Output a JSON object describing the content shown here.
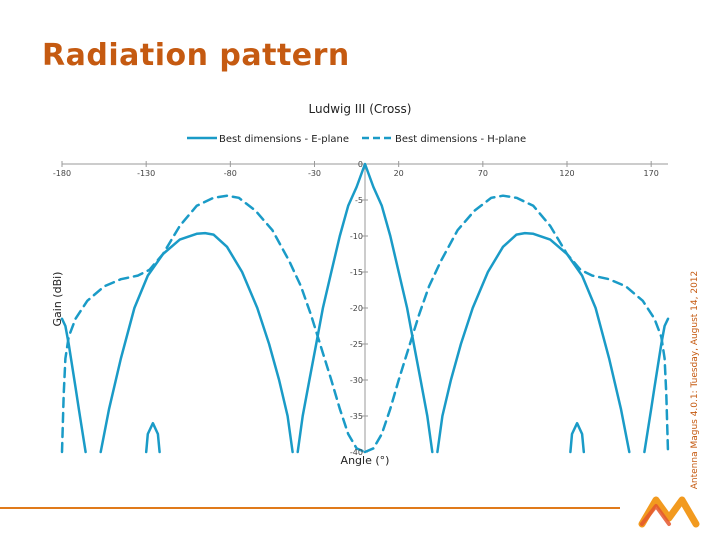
{
  "slide": {
    "title": "Radiation pattern"
  },
  "side_note": "Antenna Magus 4.0.1: Tuesday, August 14, 2012",
  "colors": {
    "series": "#1a9bc7",
    "title": "#c55a11",
    "accent": "#e07a1a",
    "axis": "#9a9a9a"
  },
  "logo": {
    "icon": "antenna-magus-logo-icon"
  },
  "chart_data": {
    "type": "line",
    "title": "Ludwig III (Cross)",
    "xlabel": "Angle (°)",
    "ylabel": "Gain (dBi)",
    "xlim": [
      -180,
      180
    ],
    "ylim": [
      -40,
      0
    ],
    "x_ticks": [
      -180,
      -130,
      -80,
      -30,
      20,
      70,
      120,
      170
    ],
    "x_tick_labels": [
      "-180",
      "-130",
      "-80",
      "-30",
      "20",
      "70",
      "120",
      "170"
    ],
    "y_ticks": [
      0,
      -5,
      -10,
      -15,
      -20,
      -25,
      -30,
      -35,
      -40
    ],
    "y_tick_labels": [
      "0",
      "-5",
      "-10",
      "-15",
      "-20",
      "-25",
      "-30",
      "-35",
      "-40"
    ],
    "legend_position": "top-center",
    "grid": false,
    "series": [
      {
        "name": "Best dimensions - E-plane",
        "style": "solid",
        "segments": [
          [
            [
              -40,
              -40
            ],
            [
              -37,
              -35
            ],
            [
              -33,
              -30
            ],
            [
              -29,
              -25
            ],
            [
              -25,
              -20
            ],
            [
              -20,
              -15
            ],
            [
              -15,
              -10
            ],
            [
              -10,
              -5.8
            ],
            [
              -5,
              -3.2
            ],
            [
              0,
              0
            ],
            [
              5,
              -3.2
            ],
            [
              10,
              -5.8
            ],
            [
              15,
              -10
            ],
            [
              20,
              -15
            ],
            [
              25,
              -20
            ],
            [
              29,
              -25
            ],
            [
              33,
              -30
            ],
            [
              37,
              -35
            ],
            [
              40,
              -40
            ]
          ],
          [
            [
              -157,
              -40
            ],
            [
              -152,
              -34
            ],
            [
              -145,
              -27
            ],
            [
              -137,
              -20
            ],
            [
              -129,
              -15.5
            ],
            [
              -120,
              -12.5
            ],
            [
              -110,
              -10.5
            ],
            [
              -100,
              -9.7
            ],
            [
              -95,
              -9.6
            ],
            [
              -90,
              -9.8
            ],
            [
              -82,
              -11.5
            ],
            [
              -73,
              -15
            ],
            [
              -64,
              -20
            ],
            [
              -57,
              -25
            ],
            [
              -51,
              -30
            ],
            [
              -46,
              -35
            ],
            [
              -43,
              -40
            ]
          ],
          [
            [
              43,
              -40
            ],
            [
              46,
              -35
            ],
            [
              51,
              -30
            ],
            [
              57,
              -25
            ],
            [
              64,
              -20
            ],
            [
              73,
              -15
            ],
            [
              82,
              -11.5
            ],
            [
              90,
              -9.8
            ],
            [
              95,
              -9.6
            ],
            [
              100,
              -9.7
            ],
            [
              110,
              -10.5
            ],
            [
              120,
              -12.5
            ],
            [
              129,
              -15.5
            ],
            [
              137,
              -20
            ],
            [
              145,
              -27
            ],
            [
              152,
              -34
            ],
            [
              157,
              -40
            ]
          ],
          [
            [
              -180,
              -21.5
            ],
            [
              -178,
              -22.5
            ],
            [
              -176,
              -25
            ],
            [
              -174,
              -28
            ],
            [
              -172,
              -31
            ],
            [
              -170,
              -34
            ],
            [
              -168,
              -37
            ],
            [
              -166,
              -40
            ]
          ],
          [
            [
              166,
              -40
            ],
            [
              168,
              -37
            ],
            [
              170,
              -34
            ],
            [
              172,
              -31
            ],
            [
              174,
              -28
            ],
            [
              176,
              -25
            ],
            [
              178,
              -22.5
            ],
            [
              180,
              -21.5
            ]
          ],
          [
            [
              -130,
              -40
            ],
            [
              -129,
              -37.5
            ],
            [
              -126,
              -36
            ],
            [
              -123,
              -37.5
            ],
            [
              -122,
              -40
            ]
          ],
          [
            [
              122,
              -40
            ],
            [
              123,
              -37.5
            ],
            [
              126,
              -36
            ],
            [
              129,
              -37.5
            ],
            [
              130,
              -40
            ]
          ]
        ]
      },
      {
        "name": "Best dimensions - H-plane",
        "style": "dashed",
        "segments": [
          [
            [
              -180,
              -40
            ],
            [
              -179,
              -32
            ],
            [
              -178,
              -27
            ],
            [
              -176,
              -24
            ],
            [
              -172,
              -21.5
            ],
            [
              -165,
              -19
            ],
            [
              -155,
              -17
            ],
            [
              -145,
              -16
            ],
            [
              -135,
              -15.5
            ],
            [
              -128,
              -14.7
            ],
            [
              -120,
              -12.5
            ],
            [
              -110,
              -8.6
            ],
            [
              -100,
              -5.8
            ],
            [
              -90,
              -4.7
            ],
            [
              -82,
              -4.4
            ],
            [
              -75,
              -4.7
            ],
            [
              -65,
              -6.5
            ],
            [
              -55,
              -9.2
            ],
            [
              -45,
              -13.5
            ],
            [
              -38,
              -17
            ],
            [
              -32,
              -21
            ],
            [
              -26,
              -25.5
            ],
            [
              -20,
              -30
            ],
            [
              -15,
              -34
            ],
            [
              -10,
              -37.5
            ],
            [
              -5,
              -39.5
            ],
            [
              0,
              -40
            ]
          ],
          [
            [
              0,
              -40
            ],
            [
              5,
              -39.5
            ],
            [
              10,
              -37.5
            ],
            [
              15,
              -34
            ],
            [
              20,
              -30
            ],
            [
              26,
              -25.5
            ],
            [
              32,
              -21
            ],
            [
              38,
              -17
            ],
            [
              45,
              -13.5
            ],
            [
              55,
              -9.2
            ],
            [
              65,
              -6.5
            ],
            [
              75,
              -4.7
            ],
            [
              82,
              -4.4
            ],
            [
              90,
              -4.7
            ],
            [
              100,
              -5.8
            ],
            [
              110,
              -8.6
            ],
            [
              120,
              -12.5
            ],
            [
              128,
              -14.7
            ],
            [
              135,
              -15.5
            ],
            [
              145,
              -16
            ],
            [
              155,
              -17
            ],
            [
              165,
              -19
            ],
            [
              172,
              -21.5
            ],
            [
              176,
              -24
            ],
            [
              178,
              -27
            ],
            [
              179,
              -32
            ],
            [
              180,
              -40
            ]
          ]
        ]
      }
    ]
  }
}
